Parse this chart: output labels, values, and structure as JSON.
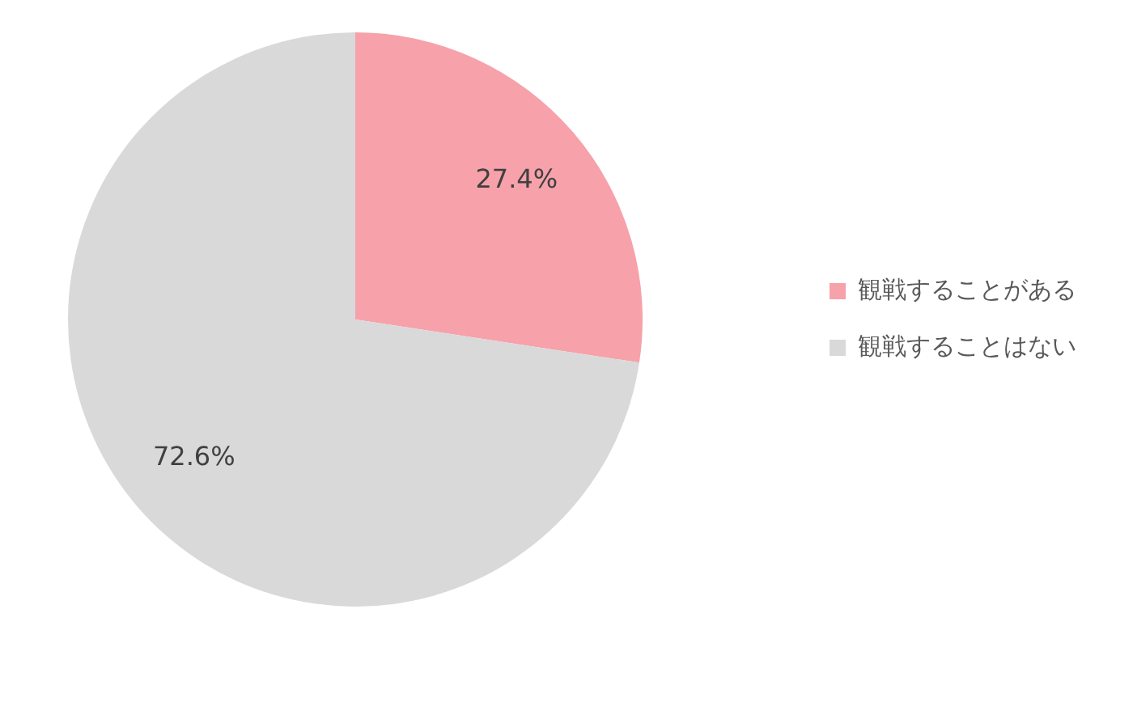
{
  "chart_data": {
    "type": "pie",
    "categories": [
      "観戦することがある",
      "観戦することはない"
    ],
    "values": [
      27.4,
      72.6
    ],
    "colors": [
      "#f7a1ab",
      "#d9d9d9"
    ],
    "value_labels": [
      "27.4%",
      "72.6%"
    ],
    "legend": "right"
  }
}
